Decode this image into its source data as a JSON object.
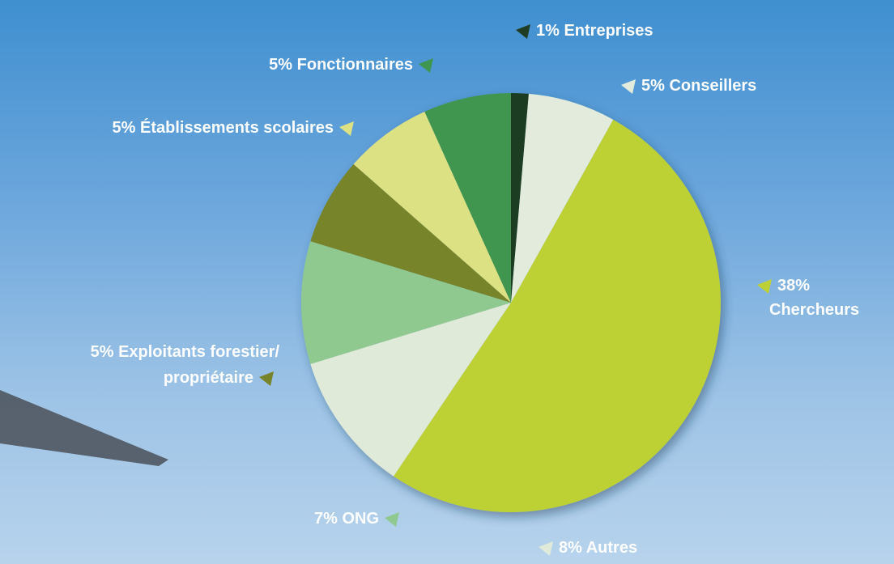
{
  "chart_data": {
    "type": "pie",
    "categories": [
      "Entreprises",
      "Conseillers",
      "Chercheurs",
      "Autres",
      "ONG",
      "Exploitants forestier/ propriétaire",
      "Établissements scolaires",
      "Fonctionnaires"
    ],
    "values": [
      1,
      5,
      38,
      8,
      7,
      5,
      5,
      5
    ],
    "value_labels": [
      "1%",
      "5%",
      "38%",
      "8%",
      "7%",
      "5%",
      "5%",
      "5%"
    ],
    "colors": [
      "#1f3d23",
      "#e3ecdc",
      "#bdd136",
      "#dfead9",
      "#90c990",
      "#788429",
      "#dce283",
      "#3f9650"
    ]
  }
}
